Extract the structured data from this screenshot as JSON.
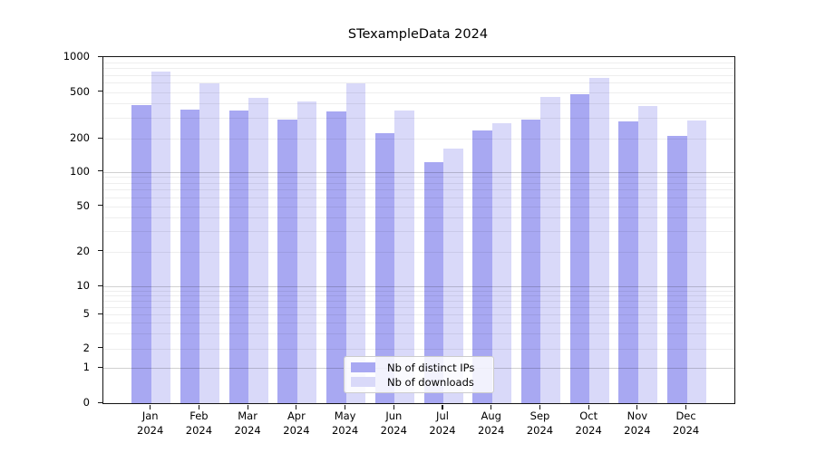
{
  "chart_data": {
    "type": "bar",
    "title": "STexampleData 2024",
    "categories": [
      "Jan",
      "Feb",
      "Mar",
      "Apr",
      "May",
      "Jun",
      "Jul",
      "Aug",
      "Sep",
      "Oct",
      "Nov",
      "Dec"
    ],
    "category_year": "2024",
    "series": [
      {
        "name": "Nb of distinct IPs",
        "color": "#a8a8f2",
        "values": [
          385,
          355,
          347,
          292,
          342,
          222,
          123,
          236,
          291,
          475,
          281,
          212
        ]
      },
      {
        "name": "Nb of downloads",
        "color": "#d9d9f9",
        "values": [
          757,
          592,
          448,
          412,
          597,
          347,
          162,
          272,
          456,
          664,
          381,
          286
        ]
      }
    ],
    "yscale": "symlog",
    "yticks": [
      0,
      1,
      2,
      5,
      10,
      20,
      50,
      100,
      200,
      500,
      1000
    ],
    "ylim": [
      0,
      1000
    ],
    "xlabel": "",
    "ylabel": "",
    "grid": "horizontal, major and minor",
    "legend_position": "lower center"
  }
}
